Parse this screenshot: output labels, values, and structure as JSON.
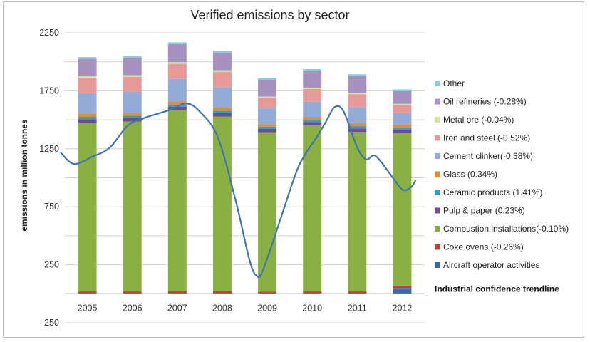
{
  "chart_data": {
    "type": "bar",
    "stacked": true,
    "title": "Verified emissions by sector",
    "ylabel": "emissions in million  tonnes",
    "xlabel": "",
    "ylim": [
      -250,
      2250
    ],
    "yticks": [
      2250,
      1750,
      1250,
      750,
      250,
      -250
    ],
    "grid": true,
    "legend_position": "right",
    "categories": [
      "2005",
      "2006",
      "2007",
      "2008",
      "2009",
      "2010",
      "2011",
      "2012"
    ],
    "series": [
      {
        "name": "Aircraft operator activities",
        "color": "#3a6aa8",
        "values": [
          0,
          0,
          0,
          0,
          0,
          0,
          0,
          50
        ]
      },
      {
        "name": "Coke ovens (-0.26%)",
        "color": "#b54745",
        "values": [
          20,
          20,
          22,
          22,
          18,
          20,
          20,
          20
        ]
      },
      {
        "name": "Combustion installations(-0.10%)",
        "color": "#8aaf45",
        "values": [
          1455,
          1465,
          1560,
          1505,
          1375,
          1430,
          1375,
          1315
        ]
      },
      {
        "name": "Pulp & paper (0.23%)",
        "color": "#6e4d8f",
        "values": [
          30,
          30,
          30,
          30,
          28,
          30,
          30,
          30
        ]
      },
      {
        "name": "Ceramic products (1.41%)",
        "color": "#3f9ab3",
        "values": [
          20,
          20,
          20,
          20,
          20,
          20,
          20,
          20
        ]
      },
      {
        "name": "Glass (0.34%)",
        "color": "#e28c3e",
        "values": [
          25,
          25,
          25,
          25,
          22,
          25,
          25,
          25
        ]
      },
      {
        "name": "Cement clinker(-0.38%)",
        "color": "#93abd6",
        "values": [
          180,
          185,
          195,
          180,
          135,
          130,
          140,
          100
        ]
      },
      {
        "name": "Iron and steel (-0.52%)",
        "color": "#e39a98",
        "values": [
          130,
          125,
          130,
          130,
          90,
          110,
          110,
          65
        ]
      },
      {
        "name": "Metal ore (-0.04%)",
        "color": "#d2e2a3",
        "values": [
          15,
          15,
          15,
          15,
          12,
          12,
          12,
          12
        ]
      },
      {
        "name": "Oil refineries (-0.28%)",
        "color": "#a792bf",
        "values": [
          150,
          150,
          155,
          150,
          145,
          145,
          145,
          110
        ]
      },
      {
        "name": "Other",
        "color": "#8cc9dc",
        "values": [
          15,
          15,
          15,
          15,
          15,
          15,
          15,
          15
        ]
      }
    ],
    "trendline": {
      "name": "Industrial confidence trendline",
      "color": "#3f74ad",
      "points": [
        [
          -0.6,
          1220
        ],
        [
          -0.3,
          1120
        ],
        [
          0.1,
          1180
        ],
        [
          0.5,
          1260
        ],
        [
          0.9,
          1450
        ],
        [
          1.3,
          1520
        ],
        [
          1.8,
          1580
        ],
        [
          2.2,
          1640
        ],
        [
          2.5,
          1570
        ],
        [
          2.9,
          1350
        ],
        [
          3.3,
          800
        ],
        [
          3.6,
          300
        ],
        [
          3.75,
          160
        ],
        [
          3.9,
          200
        ],
        [
          4.3,
          650
        ],
        [
          4.7,
          1100
        ],
        [
          5.1,
          1350
        ],
        [
          5.3,
          1480
        ],
        [
          5.5,
          1610
        ],
        [
          5.7,
          1570
        ],
        [
          6.0,
          1260
        ],
        [
          6.2,
          1160
        ],
        [
          6.4,
          1190
        ],
        [
          6.7,
          1050
        ],
        [
          7.0,
          900
        ],
        [
          7.2,
          920
        ],
        [
          7.3,
          980
        ]
      ]
    }
  }
}
